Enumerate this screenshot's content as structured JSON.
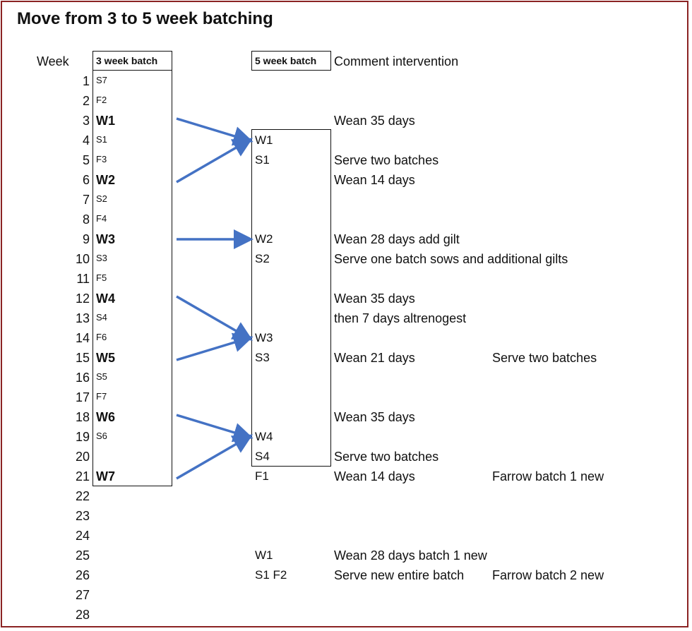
{
  "title": "Move from 3 to 5 week batching",
  "headers": {
    "week": "Week",
    "batch3": "3 week batch",
    "batch5": "5 week batch",
    "comment": "Comment intervention"
  },
  "rows": [
    {
      "week": "1",
      "b3": "S7",
      "b3_bold": false,
      "b5": "",
      "comment": "",
      "extra": ""
    },
    {
      "week": "2",
      "b3": "F2",
      "b3_bold": false,
      "b5": "",
      "comment": "",
      "extra": ""
    },
    {
      "week": "3",
      "b3": "W1",
      "b3_bold": true,
      "b5": "",
      "comment": "Wean 35 days",
      "extra": ""
    },
    {
      "week": "4",
      "b3": "S1",
      "b3_bold": false,
      "b5": "W1",
      "comment": "",
      "extra": ""
    },
    {
      "week": "5",
      "b3": "F3",
      "b3_bold": false,
      "b5": "S1",
      "comment": "Serve two batches",
      "extra": ""
    },
    {
      "week": "6",
      "b3": "W2",
      "b3_bold": true,
      "b5": "",
      "comment": "Wean 14 days",
      "extra": ""
    },
    {
      "week": "7",
      "b3": "S2",
      "b3_bold": false,
      "b5": "",
      "comment": "",
      "extra": ""
    },
    {
      "week": "8",
      "b3": "F4",
      "b3_bold": false,
      "b5": "",
      "comment": "",
      "extra": ""
    },
    {
      "week": "9",
      "b3": "W3",
      "b3_bold": true,
      "b5": "W2",
      "comment": "Wean 28 days add gilt",
      "extra": ""
    },
    {
      "week": "10",
      "b3": "S3",
      "b3_bold": false,
      "b5": "S2",
      "comment": "Serve one batch sows and additional gilts",
      "extra": ""
    },
    {
      "week": "11",
      "b3": "F5",
      "b3_bold": false,
      "b5": "",
      "comment": "",
      "extra": ""
    },
    {
      "week": "12",
      "b3": "W4",
      "b3_bold": true,
      "b5": "",
      "comment": "Wean 35 days",
      "extra": ""
    },
    {
      "week": "13",
      "b3": "S4",
      "b3_bold": false,
      "b5": "",
      "comment": "then 7 days altrenogest",
      "extra": ""
    },
    {
      "week": "14",
      "b3": "F6",
      "b3_bold": false,
      "b5": "W3",
      "comment": "",
      "extra": ""
    },
    {
      "week": "15",
      "b3": "W5",
      "b3_bold": true,
      "b5": "S3",
      "comment": "Wean 21 days",
      "extra": "Serve two batches"
    },
    {
      "week": "16",
      "b3": "S5",
      "b3_bold": false,
      "b5": "",
      "comment": "",
      "extra": ""
    },
    {
      "week": "17",
      "b3": "F7",
      "b3_bold": false,
      "b5": "",
      "comment": "",
      "extra": ""
    },
    {
      "week": "18",
      "b3": "W6",
      "b3_bold": true,
      "b5": "",
      "comment": "Wean 35 days",
      "extra": ""
    },
    {
      "week": "19",
      "b3": "S6",
      "b3_bold": false,
      "b5": "W4",
      "comment": "",
      "extra": ""
    },
    {
      "week": "20",
      "b3": "",
      "b3_bold": false,
      "b5": "S4",
      "comment": "Serve two batches",
      "extra": ""
    },
    {
      "week": "21",
      "b3": "W7",
      "b3_bold": true,
      "b5": "F1",
      "comment": "Wean 14 days",
      "extra": "Farrow batch 1 new"
    },
    {
      "week": "22",
      "b3": "",
      "b3_bold": false,
      "b5": "",
      "comment": "",
      "extra": ""
    },
    {
      "week": "23",
      "b3": "",
      "b3_bold": false,
      "b5": "",
      "comment": "",
      "extra": ""
    },
    {
      "week": "24",
      "b3": "",
      "b3_bold": false,
      "b5": "",
      "comment": "",
      "extra": ""
    },
    {
      "week": "25",
      "b3": "",
      "b3_bold": false,
      "b5": "W1",
      "comment": "Wean 28 days batch 1 new",
      "extra": ""
    },
    {
      "week": "26",
      "b3": "",
      "b3_bold": false,
      "b5": "S1  F2",
      "comment": "Serve new entire batch",
      "extra": "Farrow batch 2 new"
    },
    {
      "week": "27",
      "b3": "",
      "b3_bold": false,
      "b5": "",
      "comment": "",
      "extra": ""
    },
    {
      "week": "28",
      "b3": "",
      "b3_bold": false,
      "b5": "",
      "comment": "",
      "extra": ""
    }
  ],
  "arrows": [
    {
      "from": "W1",
      "to": "W1"
    },
    {
      "from": "W2",
      "to": "W1"
    },
    {
      "from": "W3",
      "to": "W2"
    },
    {
      "from": "W4",
      "to": "W3"
    },
    {
      "from": "W5",
      "to": "W3"
    },
    {
      "from": "W6",
      "to": "W4"
    },
    {
      "from": "W7",
      "to": "W4"
    }
  ],
  "colors": {
    "arrow": "#4472c4",
    "frame": "#8b2323"
  }
}
